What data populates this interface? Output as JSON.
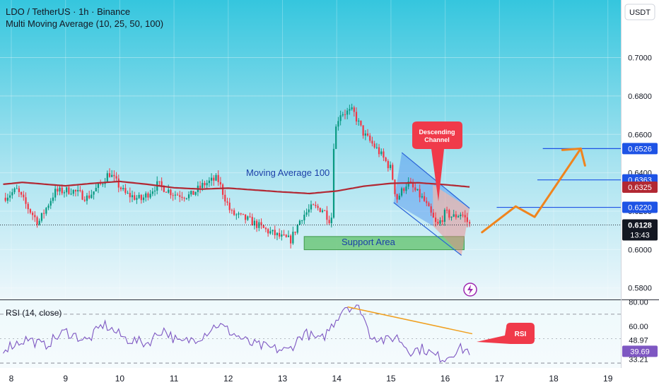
{
  "header": {
    "symbol_line": "LDO / TetherUS · 1h · Binance",
    "indicator_line": "Multi Moving Average (10, 25, 50, 100)",
    "currency_button": "USDT"
  },
  "colors": {
    "bg_top": "#35c6de",
    "bg_bottom": "#eef7fb",
    "up_candle": "#089981",
    "down_candle": "#f23645",
    "ma_line": "#b22833",
    "level_line": "#1e53e5",
    "forecast_arrow": "#f0841d",
    "support_fill": "#5fc26a",
    "channel_fill": "#4a8df0",
    "callout": "#f03a4a",
    "rsi_line": "#7e57c2",
    "rsi_trend": "#f0a020"
  },
  "chart_data": [
    {
      "type": "candlestick",
      "title": "LDO / TetherUS · 1h · Binance",
      "subtitle": "Multi Moving Average (10, 25, 50, 100)",
      "x_ticks": [
        "8",
        "9",
        "10",
        "11",
        "12",
        "13",
        "14",
        "15",
        "16",
        "17",
        "18",
        "19"
      ],
      "ylim": [
        0.574,
        0.73
      ],
      "y_ticks": [
        "0.7000",
        "0.6800",
        "0.6600",
        "0.6400",
        "0.6200",
        "0.6000",
        "0.5800"
      ],
      "price_keypoints": {
        "day": [
          7.85,
          8.1,
          8.3,
          8.5,
          8.8,
          9.1,
          9.4,
          9.65,
          9.8,
          10.1,
          10.4,
          10.7,
          11.0,
          11.3,
          11.55,
          11.8,
          12.05,
          12.4,
          12.7,
          13.0,
          13.15,
          13.35,
          13.55,
          13.75,
          13.9,
          13.95,
          14.05,
          14.3,
          14.5,
          14.75,
          15.0,
          15.1,
          15.3,
          15.6,
          15.85,
          16.0,
          16.15,
          16.3,
          16.45
        ],
        "price": [
          0.627,
          0.631,
          0.622,
          0.614,
          0.63,
          0.631,
          0.627,
          0.634,
          0.64,
          0.629,
          0.626,
          0.634,
          0.629,
          0.628,
          0.634,
          0.637,
          0.619,
          0.615,
          0.61,
          0.606,
          0.605,
          0.617,
          0.622,
          0.621,
          0.614,
          0.659,
          0.671,
          0.672,
          0.66,
          0.652,
          0.642,
          0.626,
          0.635,
          0.626,
          0.612,
          0.619,
          0.617,
          0.619,
          0.6128
        ]
      },
      "moving_average_100": {
        "day": [
          7.85,
          8.2,
          9.0,
          9.5,
          10.0,
          10.5,
          11.0,
          11.5,
          12.0,
          12.5,
          13.0,
          13.5,
          14.0,
          14.5,
          15.0,
          15.5,
          16.0,
          16.5
        ],
        "price": [
          0.634,
          0.635,
          0.6332,
          0.6345,
          0.6355,
          0.634,
          0.6322,
          0.6315,
          0.632,
          0.631,
          0.63,
          0.6292,
          0.6305,
          0.633,
          0.6345,
          0.6348,
          0.6338,
          0.6325
        ]
      },
      "horizontal_levels": [
        "0.6526",
        "0.6363",
        "0.6325",
        "0.6220",
        "0.6128"
      ],
      "current_price": "0.6128",
      "countdown": "13:43",
      "annotations": {
        "ma_label": "Moving Average 100",
        "support_label": "Support Area",
        "channel_callout": "Descending\nChannel"
      },
      "support_area": {
        "price_low": 0.5999,
        "price_high": 0.6068,
        "day_start": 13.4,
        "day_end": 16.35
      },
      "descending_channel": {
        "upper": {
          "day": [
            15.2,
            16.45
          ],
          "price": [
            0.6505,
            0.6215
          ]
        },
        "lower": {
          "day": [
            15.05,
            16.3
          ],
          "price": [
            0.6245,
            0.597
          ]
        }
      },
      "forecast_path": {
        "day": [
          16.68,
          17.3,
          17.65,
          18.5
        ],
        "price": [
          0.609,
          0.6225,
          0.617,
          0.6526
        ]
      }
    },
    {
      "type": "line",
      "title": "RSI (14, close)",
      "ylim": [
        26.0,
        81.5
      ],
      "y_ticks": [
        "80.00",
        "60.00",
        "48.97",
        "39.69",
        "33.21"
      ],
      "current_value": "39.69",
      "bands": [
        70,
        30
      ],
      "rsi_keypoints": {
        "day": [
          7.85,
          8.3,
          8.6,
          9.0,
          9.4,
          9.7,
          10.1,
          10.5,
          10.8,
          11.1,
          11.5,
          11.8,
          12.1,
          12.4,
          12.8,
          13.1,
          13.4,
          13.7,
          13.9,
          14.15,
          14.45,
          14.6,
          14.9,
          15.1,
          15.35,
          15.6,
          15.8,
          16.0,
          16.25,
          16.45
        ],
        "value": [
          42,
          50,
          44,
          56,
          48,
          62,
          50,
          46,
          58,
          46,
          52,
          62,
          54,
          46,
          42,
          40,
          55,
          48,
          60,
          77,
          74,
          54,
          48,
          52,
          40,
          42,
          36,
          34,
          42,
          40
        ]
      },
      "trendline": {
        "day": [
          14.2,
          16.5
        ],
        "value": [
          76,
          54
        ]
      },
      "callout": "RSI"
    }
  ]
}
